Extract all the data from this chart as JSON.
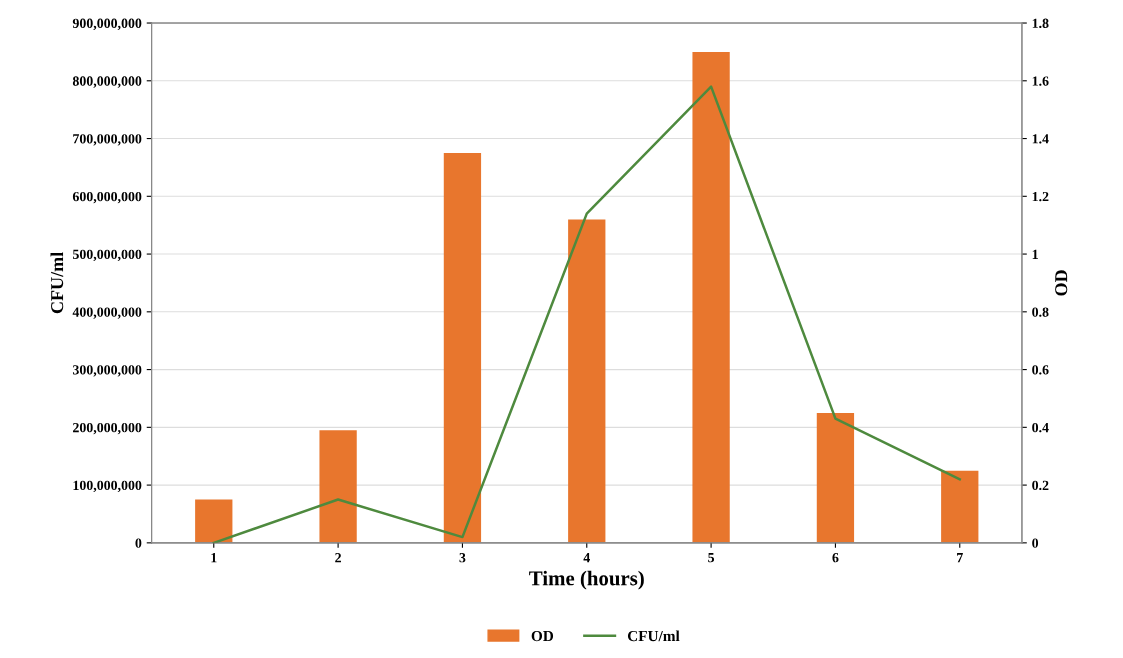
{
  "chart_data": {
    "type": "bar",
    "xlabel": "Time (hours)",
    "ylabel": "CFU/ml",
    "y2label": "OD",
    "categories": [
      "1",
      "2",
      "3",
      "4",
      "5",
      "6",
      "7"
    ],
    "series": [
      {
        "name": "OD",
        "axis": "y2",
        "color": "#e8762d",
        "values": [
          0.15,
          0.39,
          1.35,
          1.12,
          1.7,
          0.45,
          0.25
        ]
      },
      {
        "name": "CFU/ml",
        "type": "line",
        "axis": "y",
        "color": "#4e8a3e",
        "values": [
          0,
          75000000,
          10000000,
          570000000,
          790000000,
          215000000,
          110000000
        ]
      }
    ],
    "ylim": [
      0,
      900000000
    ],
    "yticks": [
      0,
      {
        "value": 100000000,
        "label": "100,000,000"
      },
      {
        "value": 200000000,
        "label": "200,000,000"
      },
      {
        "value": 300000000,
        "label": "300,000,000"
      },
      {
        "value": 400000000,
        "label": "400,000,000"
      },
      {
        "value": 500000000,
        "label": "500,000,000"
      },
      {
        "value": 600000000,
        "label": "600,000,000"
      },
      {
        "value": 700000000,
        "label": "700,000,000"
      },
      {
        "value": 800000000,
        "label": "800,000,000"
      },
      {
        "value": 900000000,
        "label": "900,000,000"
      }
    ],
    "y2lim": [
      0,
      1.8
    ],
    "y2ticks": [
      0,
      0.2,
      0.4,
      0.6,
      0.8,
      1,
      1.2,
      1.4,
      1.6,
      1.8
    ],
    "grid": true,
    "legend": "bottom",
    "marker": "none",
    "line_style": "solid"
  }
}
